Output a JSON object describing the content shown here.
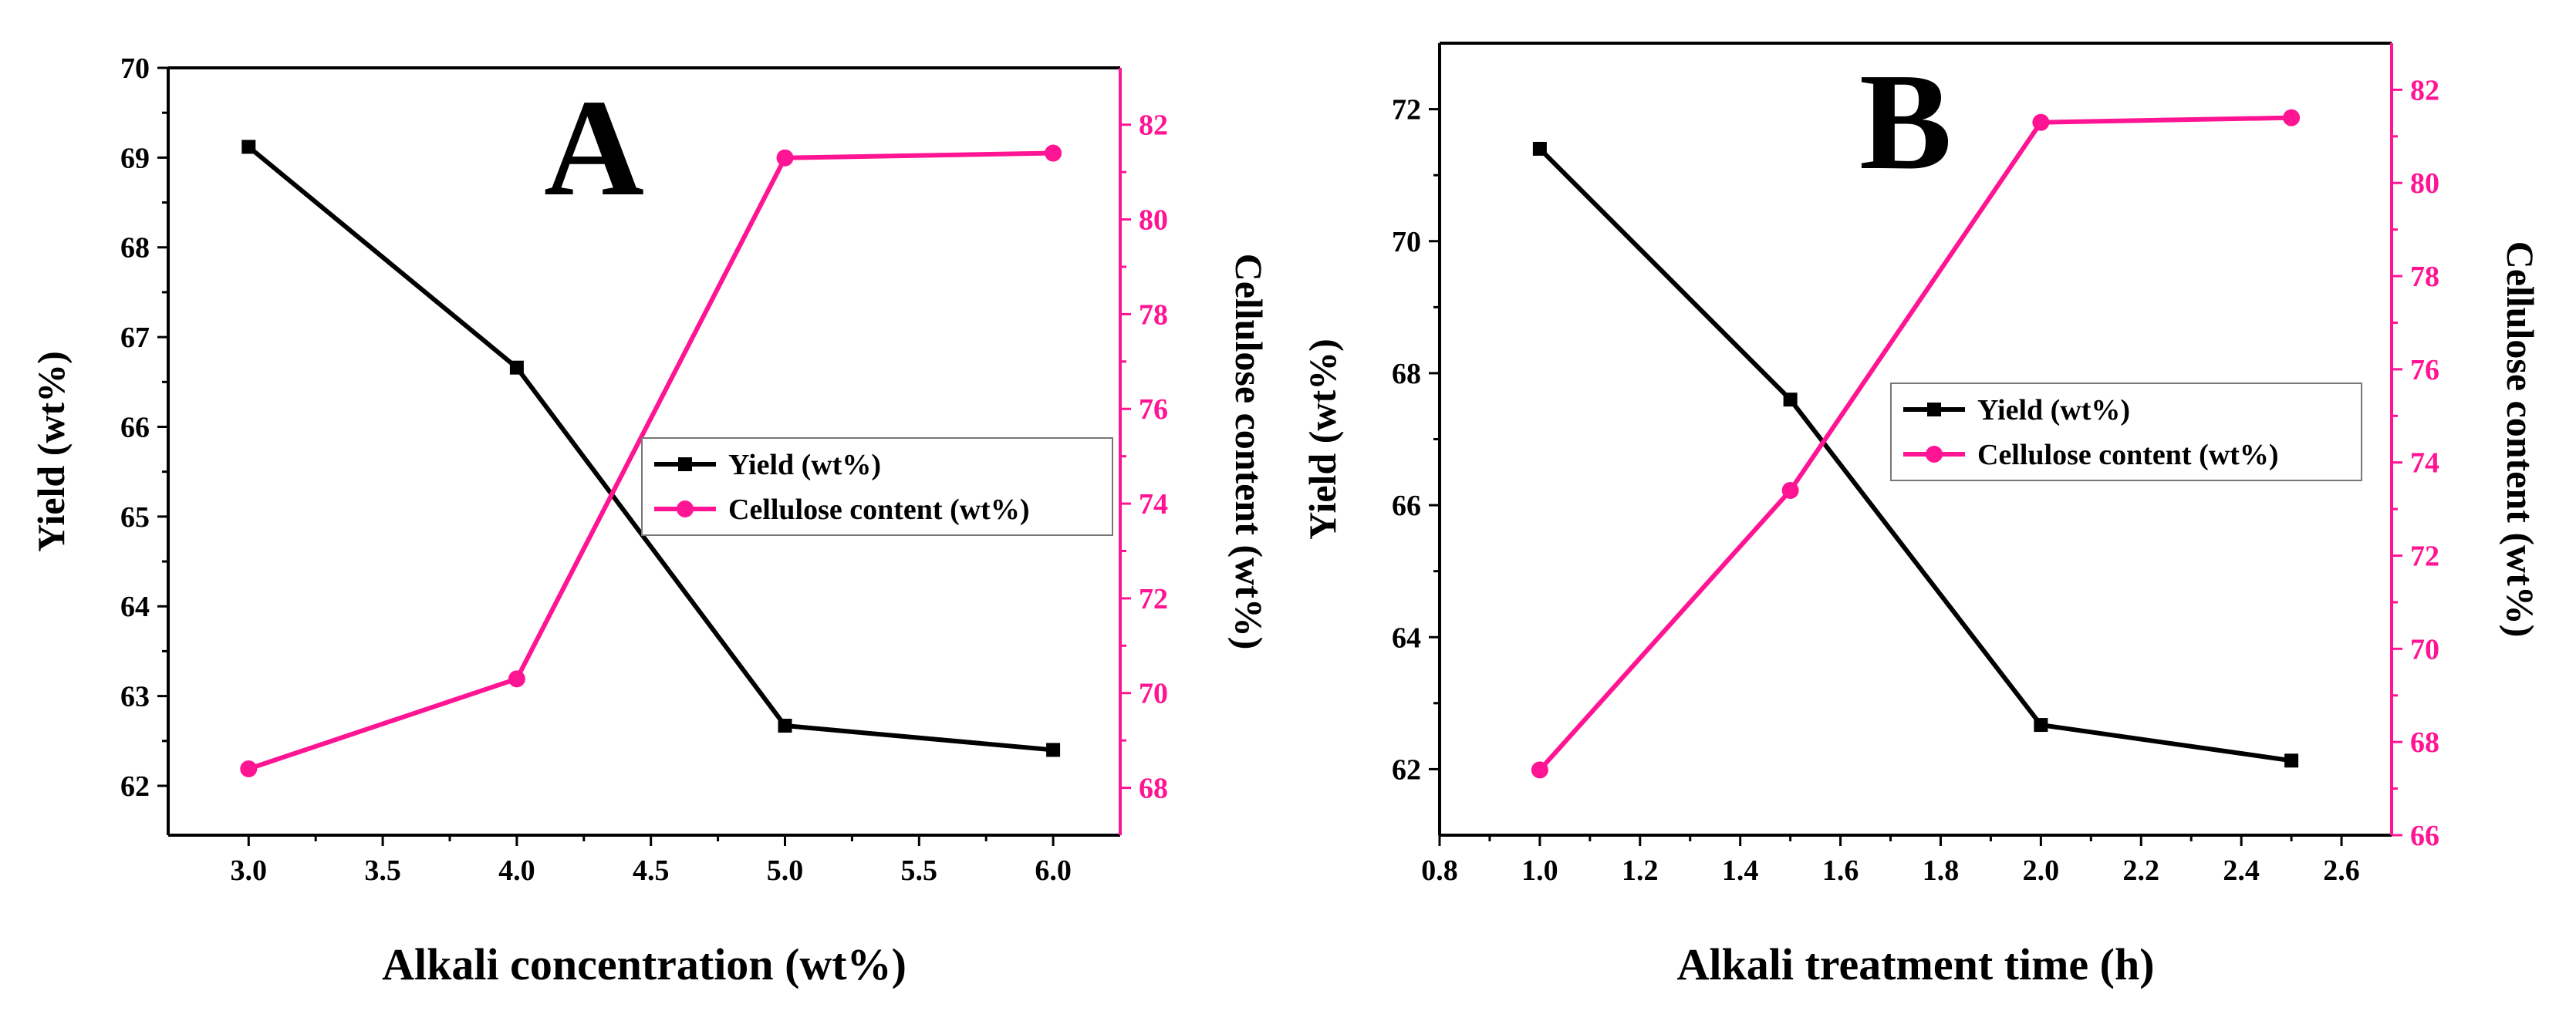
{
  "chart_data": [
    {
      "type": "line",
      "panel_label": "A",
      "xlabel": "Alkali concentration (wt%)",
      "ylabel": "Yield (wt%)",
      "ylabel_right": "Cellulose content (wt%)",
      "xlim": [
        2.7,
        6.25
      ],
      "ylim": [
        61.45,
        70
      ],
      "ylim_right": [
        67.0,
        83.2
      ],
      "xticks": [
        "3.0",
        "3.5",
        "4.0",
        "4.5",
        "5.0",
        "5.5",
        "6.0"
      ],
      "yticks": [
        "62",
        "63",
        "64",
        "65",
        "66",
        "67",
        "68",
        "69",
        "70"
      ],
      "yticks_right": [
        "68",
        "70",
        "72",
        "74",
        "76",
        "78",
        "80",
        "82"
      ],
      "series": [
        {
          "name": "Yield (wt%)",
          "axis": "left",
          "marker": "square",
          "color": "#000000",
          "x": [
            3.0,
            4.0,
            5.0,
            6.0
          ],
          "y": [
            69.12,
            66.66,
            62.67,
            62.4
          ]
        },
        {
          "name": "Cellulose content (wt%)",
          "axis": "right",
          "marker": "circle",
          "color": "#ff1493",
          "x": [
            3.0,
            4.0,
            5.0,
            6.0
          ],
          "y": [
            68.4,
            70.3,
            81.3,
            81.4
          ]
        }
      ],
      "legend": "center-right"
    },
    {
      "type": "line",
      "panel_label": "B",
      "xlabel": "Alkali treatment time (h)",
      "ylabel": "Yield (wt%)",
      "ylabel_right": "Cellulose content (wt%)",
      "xlim": [
        0.8,
        2.7
      ],
      "ylim": [
        61.0,
        73.0
      ],
      "ylim_right": [
        66.0,
        83.0
      ],
      "xticks": [
        "0.8",
        "1.0",
        "1.2",
        "1.4",
        "1.6",
        "1.8",
        "2.0",
        "2.2",
        "2.4",
        "2.6"
      ],
      "yticks": [
        "62",
        "64",
        "66",
        "68",
        "70",
        "72"
      ],
      "yticks_right": [
        "66",
        "68",
        "70",
        "72",
        "74",
        "76",
        "78",
        "80",
        "82"
      ],
      "series": [
        {
          "name": "Yield (wt%)",
          "axis": "left",
          "marker": "square",
          "color": "#000000",
          "x": [
            1.0,
            1.5,
            2.0,
            2.5
          ],
          "y": [
            71.4,
            67.6,
            62.67,
            62.13
          ]
        },
        {
          "name": "Cellulose content (wt%)",
          "axis": "right",
          "marker": "circle",
          "color": "#ff1493",
          "x": [
            1.0,
            1.5,
            2.0,
            2.5
          ],
          "y": [
            67.4,
            73.4,
            81.3,
            81.4
          ]
        }
      ],
      "legend": "center-right"
    }
  ]
}
